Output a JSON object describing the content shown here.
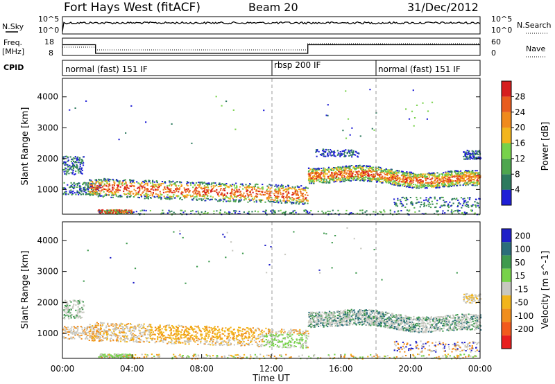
{
  "header": {
    "station": "Fort Hays West (fitACF)",
    "beam": "Beam 20",
    "date": "31/Dec/2012"
  },
  "left_labels": {
    "nsky": "N.Sky",
    "freq": "Freq.",
    "freq_unit": "[MHz]",
    "cpid": "CPID"
  },
  "right_labels": {
    "nsearch": "N.Search",
    "nave": "Nave"
  },
  "colors": {
    "power": [
      "#1f1fd6",
      "#2d7a5e",
      "#4ea64e",
      "#77d24a",
      "#f2b51c",
      "#f08a1c",
      "#e85d1e",
      "#d61e1e"
    ],
    "velocity": [
      "#e81e1e",
      "#f25a1c",
      "#f08e1c",
      "#f2b51c",
      "#c8c8c0",
      "#77d24a",
      "#3e9a4e",
      "#2b6e7a",
      "#1f1fc8"
    ]
  },
  "chart_data": [
    {
      "type": "line",
      "name": "noise",
      "y_tick_labels": [
        "10^5",
        "10^0"
      ],
      "right_tick_labels": [
        "10^5",
        "10^0"
      ],
      "series": [
        {
          "name": "N.Sky",
          "x": [
            "00:00",
            "24:00"
          ],
          "values": [
            100000,
            100000
          ]
        }
      ]
    },
    {
      "type": "line",
      "name": "frequency",
      "left_ticks": [
        18,
        8
      ],
      "right_ticks": [
        60,
        0
      ],
      "series": [
        {
          "name": "Freq. [MHz]",
          "x": [
            0,
            1.9,
            1.9,
            14.1,
            14.1,
            24
          ],
          "values": [
            15,
            15,
            10,
            10,
            15,
            15
          ]
        },
        {
          "name": "Nave",
          "x": [
            0,
            1.9,
            1.9,
            14.1,
            14.1,
            24
          ],
          "values": [
            12,
            12,
            8,
            8,
            17,
            17
          ]
        }
      ]
    },
    {
      "type": "table",
      "name": "cpid",
      "segments": [
        {
          "start": 0,
          "label": "normal (fast) 151 IF"
        },
        {
          "start": 12,
          "label": "rbsp 200 IF"
        },
        {
          "start": 18,
          "label": "normal (fast) 151 IF"
        }
      ]
    },
    {
      "type": "heatmap",
      "name": "power",
      "ylabel": "Slant Range [km]",
      "yticks": [
        1000,
        2000,
        3000,
        4000
      ],
      "ylim": [
        200,
        4600
      ],
      "xlim": [
        0,
        24
      ],
      "colorbar": {
        "label": "Power [dB]",
        "ticks": [
          4,
          8,
          12,
          16,
          20,
          24,
          28
        ]
      }
    },
    {
      "type": "heatmap",
      "name": "velocity",
      "ylabel": "Slant Range [km]",
      "yticks": [
        1000,
        2000,
        3000,
        4000
      ],
      "ylim": [
        200,
        4600
      ],
      "xlim": [
        0,
        24
      ],
      "xticks": [
        "00:00",
        "04:00",
        "08:00",
        "12:00",
        "16:00",
        "20:00",
        "00:00"
      ],
      "xlabel": "Time UT",
      "colorbar": {
        "label": "Velocity [m s^-1]",
        "ticks": [
          200,
          100,
          50,
          15,
          -15,
          -50,
          -100,
          -200
        ]
      }
    }
  ]
}
